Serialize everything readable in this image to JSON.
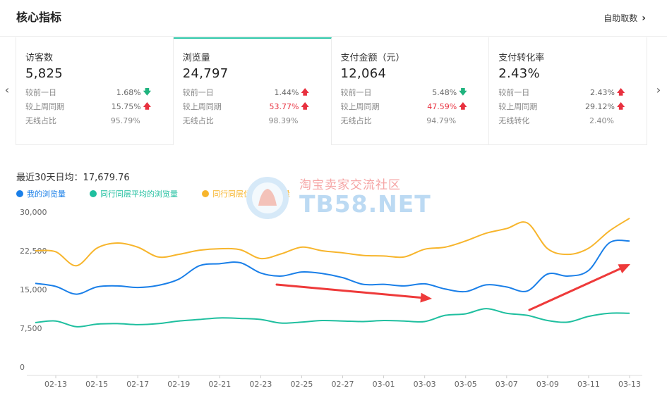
{
  "header": {
    "title": "核心指标",
    "self_fetch": "自助取数"
  },
  "cards": [
    {
      "name": "访客数",
      "value": "5,825",
      "rows": [
        {
          "label": "较前一日",
          "pct": "1.68%",
          "dir": "down"
        },
        {
          "label": "较上周同期",
          "pct": "15.75%",
          "dir": "up"
        },
        {
          "label": "无线占比",
          "pct": "95.79%",
          "dir": ""
        }
      ]
    },
    {
      "name": "浏览量",
      "value": "24,797",
      "rows": [
        {
          "label": "较前一日",
          "pct": "1.44%",
          "dir": "up"
        },
        {
          "label": "较上周同期",
          "pct": "53.77%",
          "dir": "up",
          "highlight": true
        },
        {
          "label": "无线占比",
          "pct": "98.39%",
          "dir": ""
        }
      ]
    },
    {
      "name": "支付金额（元）",
      "value": "12,064",
      "rows": [
        {
          "label": "较前一日",
          "pct": "5.48%",
          "dir": "down"
        },
        {
          "label": "较上周同期",
          "pct": "47.59%",
          "dir": "up",
          "highlight": true
        },
        {
          "label": "无线占比",
          "pct": "94.79%",
          "dir": ""
        }
      ]
    },
    {
      "name": "支付转化率",
      "value": "2.43%",
      "rows": [
        {
          "label": "较前一日",
          "pct": "2.43%",
          "dir": "up"
        },
        {
          "label": "较上周同期",
          "pct": "29.12%",
          "dir": "up"
        },
        {
          "label": "无线转化",
          "pct": "2.40%",
          "dir": ""
        }
      ]
    }
  ],
  "average": {
    "label": "最近30天日均：17,679.76"
  },
  "watermark": {
    "cn": "淘宝卖家交流社区",
    "en": "TB58.NET"
  },
  "colors": {
    "mine": "#1a7fe8",
    "peer_avg": "#1fbf9f",
    "peer_top": "#f7b52c",
    "annotation": "#ee3a3a"
  },
  "chart_data": {
    "type": "line",
    "title": "",
    "xlabel": "",
    "ylabel": "",
    "ylim": [
      0,
      30000
    ],
    "yticks": [
      0,
      7500,
      15000,
      22500,
      30000
    ],
    "ytick_labels": [
      "0",
      "7,500",
      "15,000",
      "22,500",
      "30,000"
    ],
    "x": [
      "02-12",
      "02-13",
      "02-14",
      "02-15",
      "02-16",
      "02-17",
      "02-18",
      "02-19",
      "02-20",
      "02-21",
      "02-22",
      "02-23",
      "02-24",
      "02-25",
      "02-26",
      "02-27",
      "02-28",
      "03-01",
      "03-02",
      "03-03",
      "03-04",
      "03-05",
      "03-06",
      "03-07",
      "03-08",
      "03-09",
      "03-10",
      "03-11",
      "03-12",
      "03-13"
    ],
    "xtick_labels": [
      "02-13",
      "02-15",
      "02-17",
      "02-19",
      "02-21",
      "02-23",
      "02-25",
      "02-27",
      "03-01",
      "03-03",
      "03-05",
      "03-07",
      "03-09",
      "03-11",
      "03-13"
    ],
    "series": [
      {
        "name": "我的浏览量",
        "values": [
          16200,
          15600,
          14100,
          15500,
          15700,
          15400,
          15800,
          17000,
          19600,
          20000,
          20200,
          18200,
          17600,
          18400,
          18100,
          17300,
          16000,
          16000,
          15700,
          16100,
          15100,
          14600,
          15900,
          15500,
          14700,
          18000,
          17600,
          18700,
          24000,
          24400
        ]
      },
      {
        "name": "同行同层平均的浏览量",
        "values": [
          8600,
          8900,
          7800,
          8300,
          8400,
          8200,
          8400,
          8900,
          9200,
          9500,
          9400,
          9200,
          8500,
          8700,
          9000,
          8900,
          8800,
          9000,
          8900,
          8800,
          10000,
          10300,
          11300,
          10400,
          10000,
          9000,
          8700,
          9800,
          10400,
          10400
        ]
      },
      {
        "name": "同行同层优秀的浏览量",
        "values": [
          22500,
          22300,
          19600,
          23000,
          24000,
          23200,
          21300,
          21800,
          22600,
          22900,
          22700,
          21000,
          21900,
          23200,
          22500,
          22100,
          21600,
          21500,
          21300,
          22800,
          23200,
          24400,
          25900,
          26800,
          27900,
          22900,
          21800,
          23000,
          26300,
          28800
        ]
      }
    ]
  }
}
